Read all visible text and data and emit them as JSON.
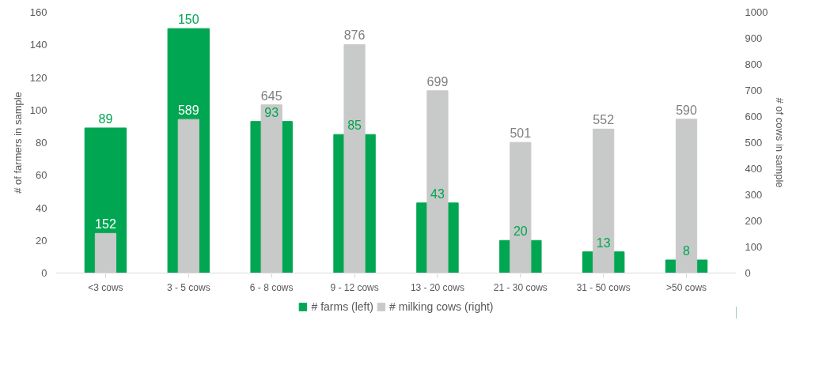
{
  "chart_data": {
    "type": "bar",
    "categories": [
      "<3 cows",
      "3 - 5 cows",
      "6 - 8 cows",
      "9 - 12 cows",
      "13 - 20 cows",
      "21 - 30 cows",
      "31 - 50 cows",
      ">50 cows"
    ],
    "series": [
      {
        "name": "# farms (left)",
        "color": "#00a651",
        "values": [
          89,
          150,
          93,
          85,
          43,
          20,
          13,
          8
        ]
      },
      {
        "name": "# milking cows (right)",
        "color": "#c8c9c9",
        "axis": "y2",
        "values": [
          152,
          589,
          645,
          876,
          699,
          501,
          552,
          590
        ]
      }
    ],
    "ylabel": "# of farmers in sample",
    "y2label": "# of cows in sample",
    "ylim": [
      0,
      160
    ],
    "yticks": [
      0,
      20,
      40,
      60,
      80,
      100,
      120,
      140,
      160
    ],
    "y2lim": [
      0,
      1000
    ],
    "y2ticks": [
      0,
      100,
      200,
      300,
      400,
      500,
      600,
      700,
      800,
      900,
      1000
    ],
    "data_labels": true,
    "legend": "bottom",
    "grid": false
  }
}
